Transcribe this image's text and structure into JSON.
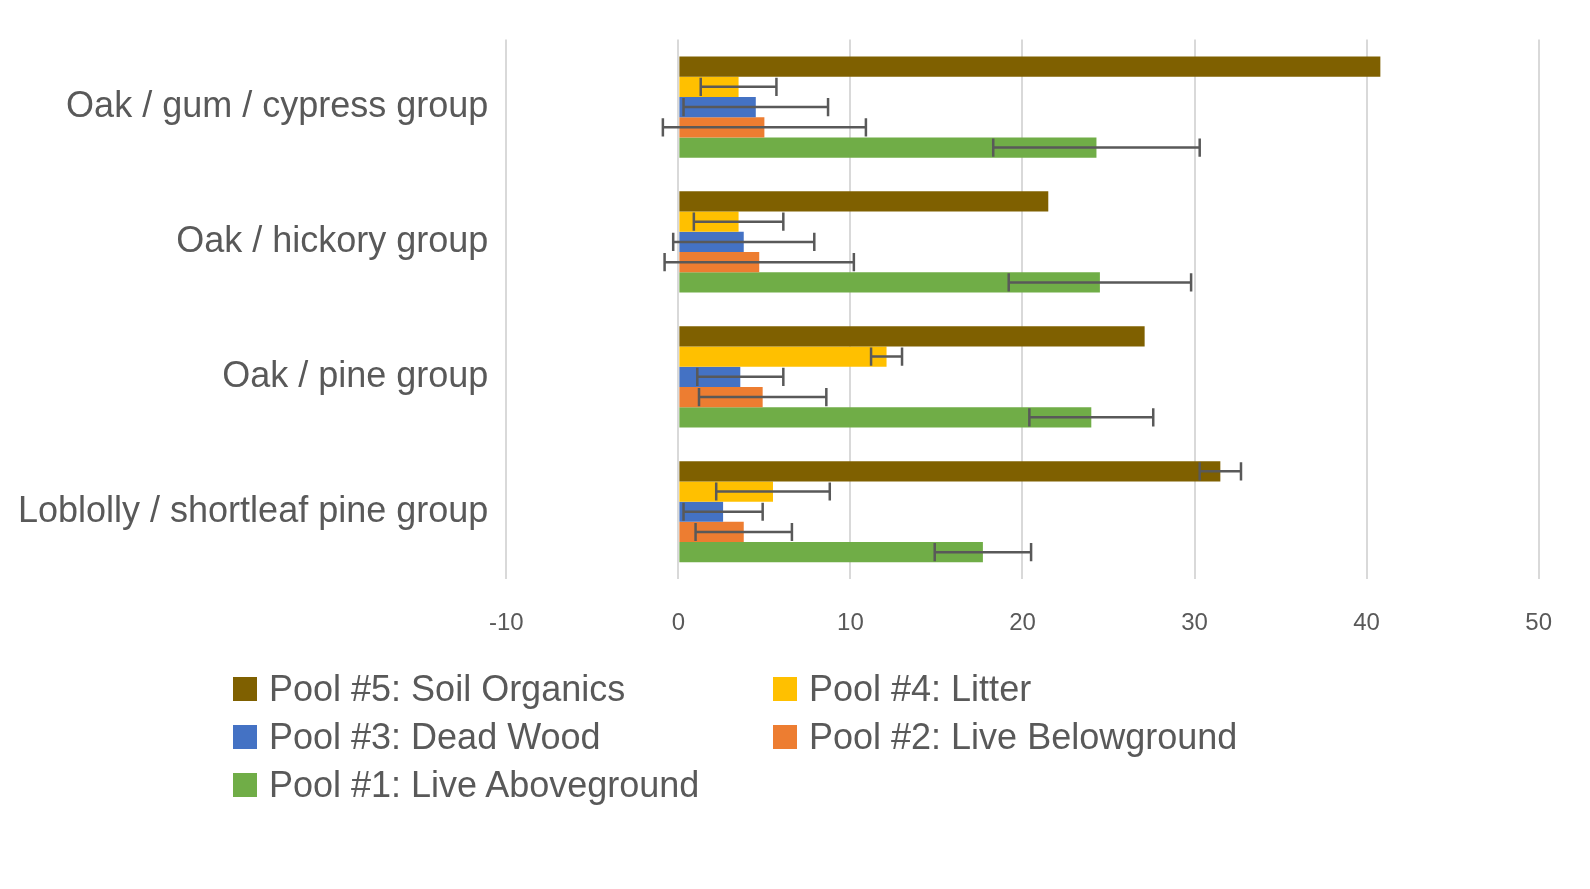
{
  "chart_data": {
    "type": "bar",
    "orientation": "horizontal",
    "categories": [
      "Oak / gum / cypress group",
      "Oak / hickory group",
      "Oak / pine group",
      "Loblolly / shortleaf pine group"
    ],
    "series": [
      {
        "name": "Pool #5: Soil Organics",
        "color": "#7f6000",
        "values": [
          40.8,
          21.5,
          27.1,
          31.5
        ],
        "errors": [
          null,
          null,
          null,
          1.2
        ]
      },
      {
        "name": "Pool #4: Litter",
        "color": "#ffc000",
        "values": [
          3.5,
          3.5,
          12.1,
          5.5
        ],
        "errors": [
          2.2,
          2.6,
          0.9,
          3.3
        ]
      },
      {
        "name": "Pool #3: Dead Wood",
        "color": "#4472c4",
        "values": [
          4.5,
          3.8,
          3.6,
          2.6
        ],
        "errors": [
          4.2,
          4.1,
          2.5,
          2.3
        ]
      },
      {
        "name": "Pool #2: Live Belowground",
        "color": "#ed7d31",
        "values": [
          5.0,
          4.7,
          4.9,
          3.8
        ],
        "errors": [
          5.9,
          5.5,
          3.7,
          2.8
        ]
      },
      {
        "name": "Pool #1: Live Aboveground",
        "color": "#70ad47",
        "values": [
          24.3,
          24.5,
          24.0,
          17.7
        ],
        "errors": [
          6.0,
          5.3,
          3.6,
          2.8
        ]
      }
    ],
    "xlim": [
      -10,
      50
    ],
    "xticks": [
      -10,
      0,
      10,
      20,
      30,
      40,
      50
    ],
    "grid": "x",
    "legend": "bottom"
  }
}
